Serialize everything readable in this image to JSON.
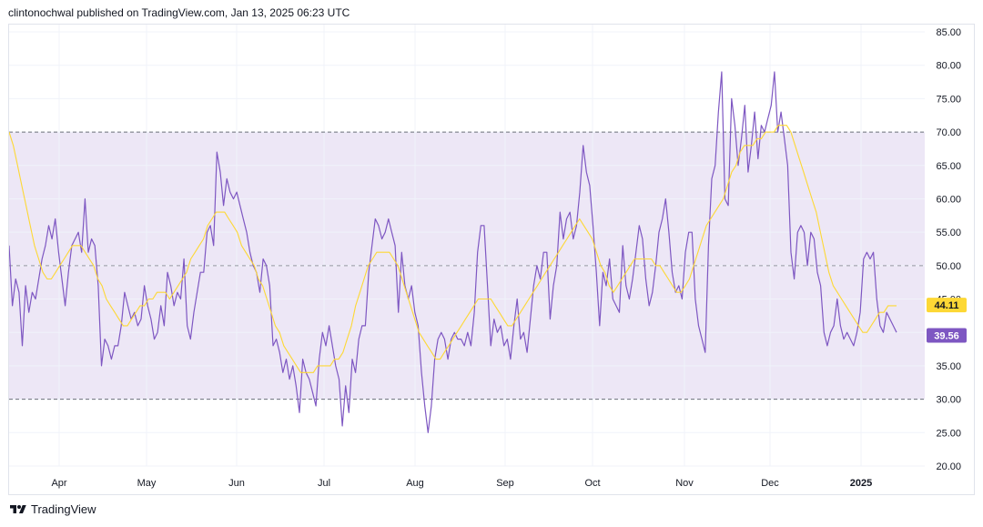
{
  "header": {
    "text": "clintonochwal published on TradingView.com, Jan 13, 2025 06:23 UTC"
  },
  "footer": {
    "brand": "TradingView"
  },
  "colors": {
    "rsi": "#7e57c2",
    "ma": "#fdd835",
    "band": "#ede7f6",
    "grid": "#f0f3fa",
    "rsi_badge": "#7e57c2",
    "ma_badge": "#fdd835"
  },
  "chart_data": {
    "type": "line",
    "x_ticks": [
      "Apr",
      "May",
      "Jun",
      "Jul",
      "Aug",
      "Sep",
      "Oct",
      "Nov",
      "Dec",
      "2025"
    ],
    "y_ticks": [
      "20.00",
      "25.00",
      "30.00",
      "35.00",
      "40.00",
      "45.00",
      "50.00",
      "55.00",
      "60.00",
      "65.00",
      "70.00",
      "75.00",
      "80.00",
      "85.00"
    ],
    "ylim": [
      20,
      85
    ],
    "band": {
      "upper": 70,
      "middle": 50,
      "lower": 30
    },
    "last_values": {
      "ma": "44.11",
      "rsi": "39.56"
    },
    "series": [
      {
        "key": "rsi",
        "values": [
          53,
          44,
          48,
          46,
          38,
          47,
          43,
          46,
          45,
          48,
          51,
          53,
          56,
          54,
          57,
          52,
          48,
          44,
          49,
          53,
          54,
          55,
          52,
          60,
          52,
          54,
          53,
          47,
          35,
          39,
          38,
          36,
          38,
          38,
          41,
          46,
          44,
          42,
          43,
          41,
          42,
          47,
          44,
          42,
          39,
          40,
          44,
          41,
          49,
          47,
          44,
          46,
          45,
          51,
          41,
          39,
          43,
          46,
          49,
          49,
          55,
          56,
          53,
          67,
          64,
          59,
          63,
          61,
          60,
          61,
          59,
          57,
          55,
          52,
          50,
          49,
          46,
          51,
          50,
          47,
          38,
          39,
          37,
          34,
          36,
          33,
          35,
          32,
          28,
          36,
          34,
          33,
          31,
          29,
          36,
          40,
          38,
          41,
          38,
          35,
          33,
          26,
          32,
          28,
          36,
          34,
          39,
          41,
          41,
          49,
          53,
          57,
          56,
          54,
          55,
          57,
          55,
          53,
          43,
          52,
          47,
          45,
          47,
          43,
          41,
          34,
          29,
          25,
          29,
          36,
          39,
          40,
          39,
          36,
          39,
          40,
          39,
          39,
          38,
          40,
          38,
          43,
          52,
          56,
          56,
          47,
          38,
          42,
          40,
          41,
          38,
          39,
          36,
          41,
          45,
          39,
          40,
          37,
          42,
          47,
          50,
          48,
          52,
          52,
          42,
          47,
          50,
          58,
          54,
          57,
          58,
          54,
          56,
          61,
          68,
          64,
          62,
          56,
          49,
          41,
          49,
          47,
          51,
          45,
          44,
          43,
          53,
          47,
          45,
          48,
          52,
          56,
          54,
          48,
          44,
          46,
          50,
          55,
          57,
          60,
          55,
          49,
          46,
          47,
          45,
          52,
          55,
          55,
          45,
          41,
          39,
          37,
          53,
          63,
          65,
          73,
          79,
          60,
          59,
          75,
          71,
          65,
          69,
          74,
          64,
          68,
          73,
          66,
          71,
          70,
          72,
          74,
          79,
          70,
          73,
          69,
          65,
          52,
          48,
          55,
          56,
          55,
          50,
          55,
          54,
          49,
          47,
          40,
          38,
          40,
          41,
          45,
          41,
          39,
          40,
          39,
          38,
          40,
          43,
          51,
          52,
          51,
          52,
          45,
          41,
          40,
          43,
          42,
          41,
          40
        ]
      },
      {
        "key": "ma",
        "values": [
          70,
          68,
          65,
          62,
          59,
          56,
          53,
          51,
          49,
          48,
          48,
          49,
          50,
          51,
          52,
          53,
          53,
          53,
          52,
          51,
          50,
          48,
          47,
          45,
          44,
          43,
          42,
          41,
          41,
          42,
          43,
          44,
          44,
          45,
          45,
          46,
          46,
          46,
          45,
          46,
          47,
          48,
          49,
          51,
          52,
          53,
          54,
          56,
          57,
          58,
          58,
          58,
          57,
          56,
          55,
          53,
          52,
          51,
          50,
          48,
          47,
          45,
          43,
          41,
          40,
          38,
          37,
          36,
          35,
          34,
          34,
          34,
          34,
          35,
          35,
          35,
          35,
          36,
          36,
          37,
          39,
          41,
          44,
          46,
          48,
          50,
          51,
          52,
          52,
          52,
          52,
          51,
          50,
          48,
          46,
          44,
          42,
          40,
          39,
          38,
          37,
          36,
          36,
          37,
          38,
          39,
          40,
          41,
          42,
          43,
          44,
          45,
          45,
          45,
          45,
          44,
          43,
          42,
          41,
          41,
          42,
          43,
          44,
          45,
          46,
          47,
          48,
          49,
          50,
          51,
          52,
          53,
          54,
          55,
          56,
          57,
          56,
          55,
          54,
          52,
          50,
          49,
          47,
          46,
          47,
          48,
          49,
          50,
          51,
          51,
          51,
          51,
          51,
          50,
          50,
          49,
          48,
          47,
          46,
          46,
          47,
          48,
          50,
          52,
          54,
          56,
          57,
          58,
          59,
          60,
          62,
          64,
          65,
          67,
          68,
          68,
          68,
          69,
          69,
          70,
          70,
          70,
          71,
          71,
          71,
          70,
          68,
          66,
          64,
          62,
          60,
          58,
          55,
          52,
          49,
          47,
          46,
          45,
          44,
          43,
          42,
          41,
          40,
          40,
          41,
          42,
          43,
          43,
          44,
          44,
          44
        ]
      }
    ]
  }
}
